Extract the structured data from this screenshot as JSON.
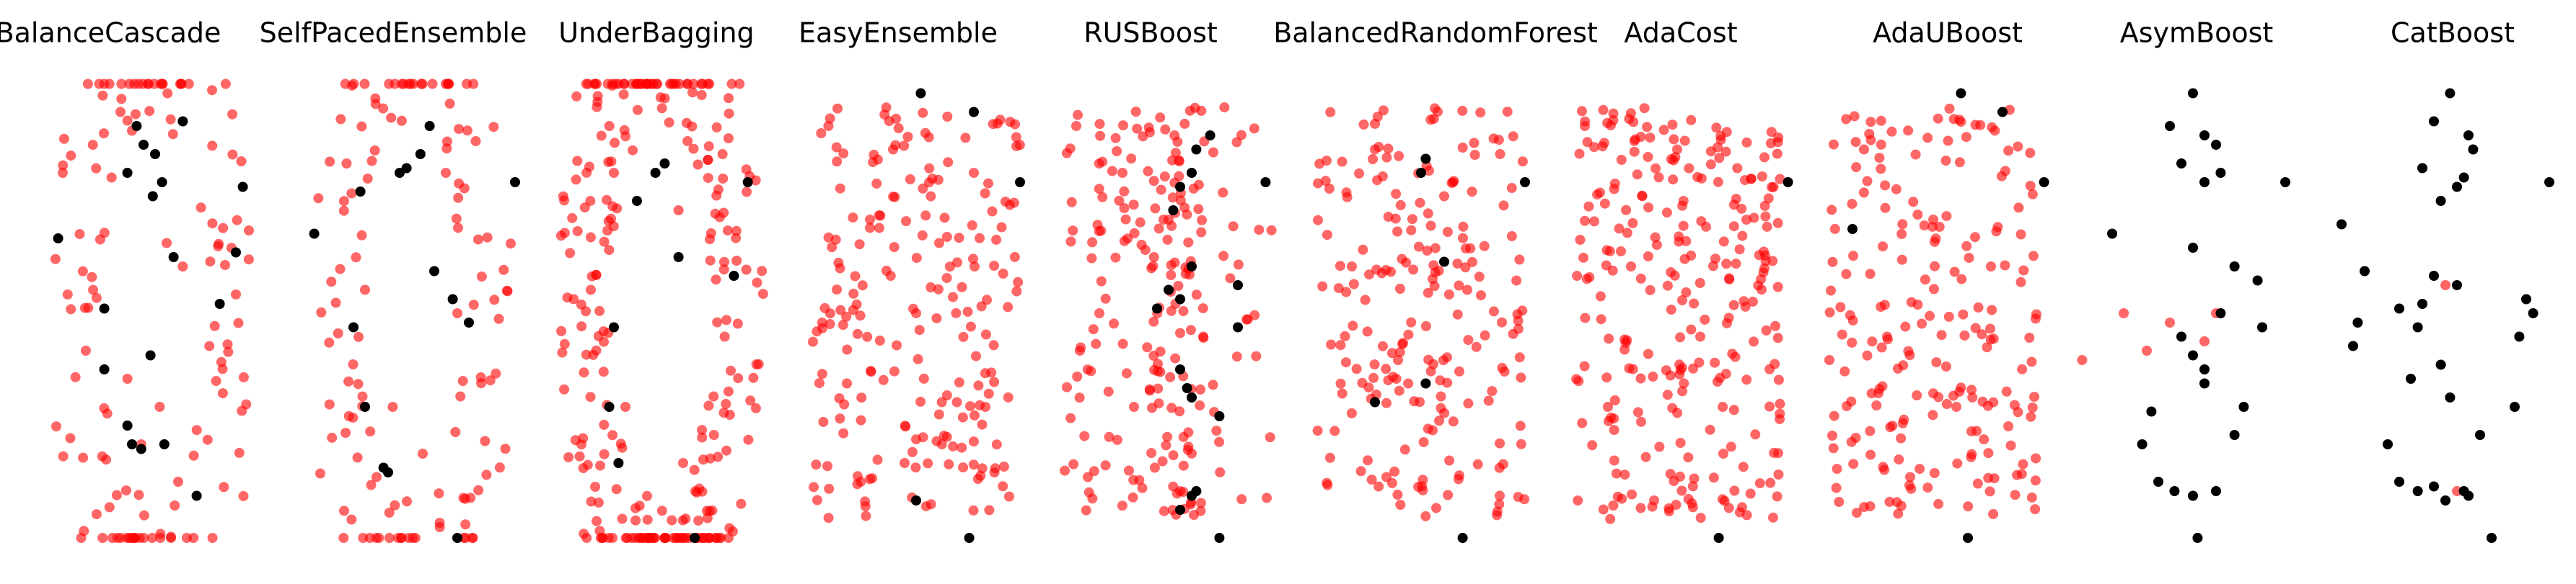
{
  "chart_data": {
    "type": "scatter",
    "colors": {
      "resampled": "#ff0000",
      "original": "#000000"
    },
    "panels": [
      {
        "title": "BalanceCascade",
        "red": [
          {
            "x": 0.35,
            "y": 0.93
          },
          {
            "x": 0.4,
            "y": 0.89
          },
          {
            "x": 0.1,
            "y": 0.8
          },
          {
            "x": 0.55,
            "y": 0.65
          },
          {
            "x": 0.62,
            "y": 0.6
          },
          {
            "x": 0.2,
            "y": 0.42
          },
          {
            "x": 0.38,
            "y": 0.36
          },
          {
            "x": 0.52,
            "y": 0.3
          },
          {
            "x": 0.44,
            "y": 0.22
          },
          {
            "x": 0.6,
            "y": 0.14
          }
        ],
        "black": [
          {
            "x": 0.42,
            "y": 0.9
          },
          {
            "x": 0.62,
            "y": 0.91
          },
          {
            "x": 0.45,
            "y": 0.86
          },
          {
            "x": 0.5,
            "y": 0.84
          },
          {
            "x": 0.38,
            "y": 0.8
          },
          {
            "x": 0.53,
            "y": 0.78
          },
          {
            "x": 0.49,
            "y": 0.75
          },
          {
            "x": 0.88,
            "y": 0.77
          },
          {
            "x": 0.08,
            "y": 0.66
          },
          {
            "x": 0.58,
            "y": 0.62
          },
          {
            "x": 0.85,
            "y": 0.63
          },
          {
            "x": 0.78,
            "y": 0.52
          },
          {
            "x": 0.28,
            "y": 0.51
          },
          {
            "x": 0.48,
            "y": 0.41
          },
          {
            "x": 0.28,
            "y": 0.38
          },
          {
            "x": 0.38,
            "y": 0.26
          },
          {
            "x": 0.4,
            "y": 0.22
          },
          {
            "x": 0.44,
            "y": 0.21
          },
          {
            "x": 0.54,
            "y": 0.22
          },
          {
            "x": 0.68,
            "y": 0.11
          }
        ]
      },
      {
        "title": "SelfPacedEnsemble",
        "red": [
          {
            "x": 0.22,
            "y": 0.82
          },
          {
            "x": 0.65,
            "y": 0.8
          },
          {
            "x": 0.3,
            "y": 0.55
          },
          {
            "x": 0.7,
            "y": 0.5
          },
          {
            "x": 0.42,
            "y": 0.3
          },
          {
            "x": 0.55,
            "y": 0.2
          },
          {
            "x": 0.35,
            "y": 0.15
          }
        ],
        "black": [
          {
            "x": 0.58,
            "y": 0.9
          },
          {
            "x": 0.54,
            "y": 0.84
          },
          {
            "x": 0.48,
            "y": 0.81
          },
          {
            "x": 0.45,
            "y": 0.8
          },
          {
            "x": 0.28,
            "y": 0.76
          },
          {
            "x": 0.95,
            "y": 0.78
          },
          {
            "x": 0.08,
            "y": 0.67
          },
          {
            "x": 0.6,
            "y": 0.59
          },
          {
            "x": 0.68,
            "y": 0.53
          },
          {
            "x": 0.75,
            "y": 0.48
          },
          {
            "x": 0.25,
            "y": 0.47
          },
          {
            "x": 0.3,
            "y": 0.3
          },
          {
            "x": 0.38,
            "y": 0.17
          },
          {
            "x": 0.4,
            "y": 0.16
          },
          {
            "x": 0.7,
            "y": 0.02
          }
        ]
      },
      {
        "title": "UnderBagging",
        "red": [
          {
            "x": 0.3,
            "y": 0.8
          },
          {
            "x": 0.58,
            "y": 0.72
          },
          {
            "x": 0.2,
            "y": 0.55
          },
          {
            "x": 0.78,
            "y": 0.45
          },
          {
            "x": 0.35,
            "y": 0.3
          },
          {
            "x": 0.6,
            "y": 0.18
          }
        ],
        "black": [
          {
            "x": 0.52,
            "y": 0.82
          },
          {
            "x": 0.48,
            "y": 0.8
          },
          {
            "x": 0.88,
            "y": 0.78
          },
          {
            "x": 0.4,
            "y": 0.74
          },
          {
            "x": 0.58,
            "y": 0.62
          },
          {
            "x": 0.82,
            "y": 0.58
          },
          {
            "x": 0.3,
            "y": 0.47
          },
          {
            "x": 0.28,
            "y": 0.3
          },
          {
            "x": 0.32,
            "y": 0.18
          },
          {
            "x": 0.65,
            "y": 0.02
          }
        ]
      },
      {
        "title": "EasyEnsemble",
        "red": [
          {
            "x": 0.12,
            "y": 0.9
          },
          {
            "x": 0.4,
            "y": 0.85
          },
          {
            "x": 0.75,
            "y": 0.8
          },
          {
            "x": 0.3,
            "y": 0.7
          },
          {
            "x": 0.6,
            "y": 0.65
          },
          {
            "x": 0.5,
            "y": 0.5
          },
          {
            "x": 0.2,
            "y": 0.35
          },
          {
            "x": 0.8,
            "y": 0.3
          },
          {
            "x": 0.45,
            "y": 0.18
          }
        ],
        "black": [
          {
            "x": 0.52,
            "y": 0.97
          },
          {
            "x": 0.75,
            "y": 0.93
          },
          {
            "x": 0.95,
            "y": 0.78
          },
          {
            "x": 0.5,
            "y": 0.1
          },
          {
            "x": 0.73,
            "y": 0.02
          }
        ]
      },
      {
        "title": "RUSBoost",
        "red": [
          {
            "x": 0.1,
            "y": 0.9
          },
          {
            "x": 0.3,
            "y": 0.8
          },
          {
            "x": 0.5,
            "y": 0.7
          },
          {
            "x": 0.2,
            "y": 0.5
          },
          {
            "x": 0.65,
            "y": 0.45
          },
          {
            "x": 0.35,
            "y": 0.3
          },
          {
            "x": 0.15,
            "y": 0.15
          },
          {
            "x": 0.55,
            "y": 0.12
          }
        ],
        "black": [
          {
            "x": 0.68,
            "y": 0.88
          },
          {
            "x": 0.62,
            "y": 0.85
          },
          {
            "x": 0.6,
            "y": 0.8
          },
          {
            "x": 0.55,
            "y": 0.77
          },
          {
            "x": 0.52,
            "y": 0.72
          },
          {
            "x": 0.92,
            "y": 0.78
          },
          {
            "x": 0.6,
            "y": 0.6
          },
          {
            "x": 0.5,
            "y": 0.55
          },
          {
            "x": 0.8,
            "y": 0.56
          },
          {
            "x": 0.45,
            "y": 0.51
          },
          {
            "x": 0.55,
            "y": 0.53
          },
          {
            "x": 0.8,
            "y": 0.47
          },
          {
            "x": 0.55,
            "y": 0.38
          },
          {
            "x": 0.58,
            "y": 0.34
          },
          {
            "x": 0.6,
            "y": 0.32
          },
          {
            "x": 0.72,
            "y": 0.28
          },
          {
            "x": 0.62,
            "y": 0.12
          },
          {
            "x": 0.6,
            "y": 0.11
          },
          {
            "x": 0.55,
            "y": 0.08
          },
          {
            "x": 0.72,
            "y": 0.02
          }
        ]
      },
      {
        "title": "BalancedRandomForest",
        "red": [
          {
            "x": 0.3,
            "y": 0.85
          },
          {
            "x": 0.6,
            "y": 0.75
          },
          {
            "x": 0.2,
            "y": 0.6
          },
          {
            "x": 0.7,
            "y": 0.55
          },
          {
            "x": 0.4,
            "y": 0.4
          },
          {
            "x": 0.55,
            "y": 0.25
          },
          {
            "x": 0.35,
            "y": 0.15
          }
        ],
        "black": [
          {
            "x": 0.52,
            "y": 0.83
          },
          {
            "x": 0.5,
            "y": 0.8
          },
          {
            "x": 0.95,
            "y": 0.78
          },
          {
            "x": 0.6,
            "y": 0.61
          },
          {
            "x": 0.52,
            "y": 0.35
          },
          {
            "x": 0.3,
            "y": 0.31
          },
          {
            "x": 0.68,
            "y": 0.02
          }
        ]
      },
      {
        "title": "AdaCost",
        "red": [
          {
            "x": 0.1,
            "y": 0.9
          },
          {
            "x": 0.5,
            "y": 0.85
          },
          {
            "x": 0.8,
            "y": 0.7
          },
          {
            "x": 0.3,
            "y": 0.6
          },
          {
            "x": 0.6,
            "y": 0.45
          },
          {
            "x": 0.2,
            "y": 0.3
          },
          {
            "x": 0.7,
            "y": 0.2
          },
          {
            "x": 0.4,
            "y": 0.1
          }
        ],
        "black": [
          {
            "x": 0.98,
            "y": 0.78
          },
          {
            "x": 0.68,
            "y": 0.02
          }
        ]
      },
      {
        "title": "AdaUBoost",
        "red": [
          {
            "x": 0.2,
            "y": 0.85
          },
          {
            "x": 0.5,
            "y": 0.7
          },
          {
            "x": 0.75,
            "y": 0.6
          },
          {
            "x": 0.3,
            "y": 0.45
          },
          {
            "x": 0.6,
            "y": 0.3
          },
          {
            "x": 0.05,
            "y": 0.4
          },
          {
            "x": 0.4,
            "y": 0.15
          }
        ],
        "black": [
          {
            "x": 0.62,
            "y": 0.97
          },
          {
            "x": 0.8,
            "y": 0.93
          },
          {
            "x": 0.98,
            "y": 0.78
          },
          {
            "x": 0.15,
            "y": 0.68
          },
          {
            "x": 0.65,
            "y": 0.02
          }
        ]
      },
      {
        "title": "AsymBoost",
        "red": [
          {
            "x": 0.2,
            "y": 0.5
          },
          {
            "x": 0.4,
            "y": 0.48
          },
          {
            "x": 0.6,
            "y": 0.5
          },
          {
            "x": 0.8,
            "y": 0.47
          },
          {
            "x": 0.3,
            "y": 0.42
          },
          {
            "x": 0.55,
            "y": 0.44
          },
          {
            "x": 0.02,
            "y": 0.4
          }
        ],
        "black": [
          {
            "x": 0.5,
            "y": 0.97
          },
          {
            "x": 0.4,
            "y": 0.9
          },
          {
            "x": 0.55,
            "y": 0.88
          },
          {
            "x": 0.6,
            "y": 0.86
          },
          {
            "x": 0.45,
            "y": 0.82
          },
          {
            "x": 0.55,
            "y": 0.78
          },
          {
            "x": 0.62,
            "y": 0.8
          },
          {
            "x": 0.9,
            "y": 0.78
          },
          {
            "x": 0.15,
            "y": 0.67
          },
          {
            "x": 0.5,
            "y": 0.64
          },
          {
            "x": 0.68,
            "y": 0.6
          },
          {
            "x": 0.78,
            "y": 0.57
          },
          {
            "x": 0.8,
            "y": 0.47
          },
          {
            "x": 0.62,
            "y": 0.5
          },
          {
            "x": 0.45,
            "y": 0.45
          },
          {
            "x": 0.5,
            "y": 0.41
          },
          {
            "x": 0.55,
            "y": 0.38
          },
          {
            "x": 0.55,
            "y": 0.35
          },
          {
            "x": 0.32,
            "y": 0.29
          },
          {
            "x": 0.72,
            "y": 0.3
          },
          {
            "x": 0.28,
            "y": 0.22
          },
          {
            "x": 0.68,
            "y": 0.24
          },
          {
            "x": 0.35,
            "y": 0.14
          },
          {
            "x": 0.42,
            "y": 0.12
          },
          {
            "x": 0.5,
            "y": 0.11
          },
          {
            "x": 0.6,
            "y": 0.12
          },
          {
            "x": 0.52,
            "y": 0.02
          }
        ]
      },
      {
        "title": "CatBoost",
        "red": [
          {
            "x": 0.5,
            "y": 0.56
          },
          {
            "x": 0.55,
            "y": 0.12
          }
        ],
        "black": [
          {
            "x": 0.52,
            "y": 0.97
          },
          {
            "x": 0.45,
            "y": 0.91
          },
          {
            "x": 0.6,
            "y": 0.88
          },
          {
            "x": 0.62,
            "y": 0.85
          },
          {
            "x": 0.4,
            "y": 0.81
          },
          {
            "x": 0.58,
            "y": 0.79
          },
          {
            "x": 0.55,
            "y": 0.77
          },
          {
            "x": 0.48,
            "y": 0.74
          },
          {
            "x": 0.95,
            "y": 0.78
          },
          {
            "x": 0.05,
            "y": 0.69
          },
          {
            "x": 0.15,
            "y": 0.59
          },
          {
            "x": 0.45,
            "y": 0.58
          },
          {
            "x": 0.55,
            "y": 0.56
          },
          {
            "x": 0.85,
            "y": 0.53
          },
          {
            "x": 0.88,
            "y": 0.5
          },
          {
            "x": 0.4,
            "y": 0.52
          },
          {
            "x": 0.3,
            "y": 0.51
          },
          {
            "x": 0.12,
            "y": 0.48
          },
          {
            "x": 0.38,
            "y": 0.47
          },
          {
            "x": 0.82,
            "y": 0.45
          },
          {
            "x": 0.1,
            "y": 0.43
          },
          {
            "x": 0.48,
            "y": 0.39
          },
          {
            "x": 0.52,
            "y": 0.32
          },
          {
            "x": 0.35,
            "y": 0.36
          },
          {
            "x": 0.8,
            "y": 0.3
          },
          {
            "x": 0.25,
            "y": 0.22
          },
          {
            "x": 0.65,
            "y": 0.24
          },
          {
            "x": 0.3,
            "y": 0.14
          },
          {
            "x": 0.38,
            "y": 0.12
          },
          {
            "x": 0.45,
            "y": 0.13
          },
          {
            "x": 0.58,
            "y": 0.12
          },
          {
            "x": 0.6,
            "y": 0.11
          },
          {
            "x": 0.5,
            "y": 0.1
          },
          {
            "x": 0.7,
            "y": 0.02
          }
        ]
      }
    ]
  }
}
